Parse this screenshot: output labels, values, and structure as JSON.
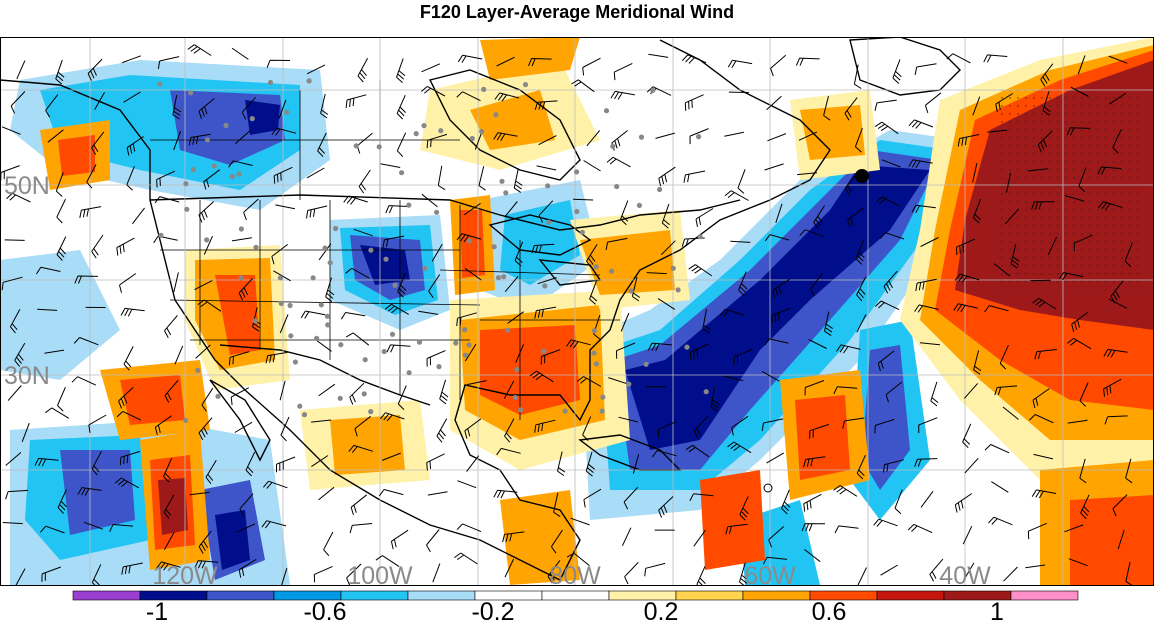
{
  "title": "F120 Layer-Average Meridional Wind",
  "latitude_labels": [
    "50N",
    "30N"
  ],
  "longitude_labels": [
    "120W",
    "100W",
    "80W",
    "60W",
    "40W"
  ],
  "colorbar": {
    "colors": [
      "#9b3fd0",
      "#000e8c",
      "#3d55c8",
      "#0099e6",
      "#22c4f4",
      "#a8dcf7",
      "#ffffff",
      "#ffffff",
      "#fff2a8",
      "#ffd34d",
      "#ffa400",
      "#ff4a00",
      "#c4160c",
      "#9e1a1a",
      "#ff8fc8"
    ],
    "tick_labels": [
      "-1",
      "-0.6",
      "-0.2",
      "0.2",
      "0.6",
      "1"
    ]
  },
  "colors": {
    "strong_negative": "#000e8c",
    "negative": "#3d55c8",
    "weak_negative": "#22c4f4",
    "faint_negative": "#a8dcf7",
    "weak_positive": "#fff2a8",
    "positive": "#ffa400",
    "strong_positive": "#ff4a00",
    "extreme_positive": "#9e1a1a"
  }
}
